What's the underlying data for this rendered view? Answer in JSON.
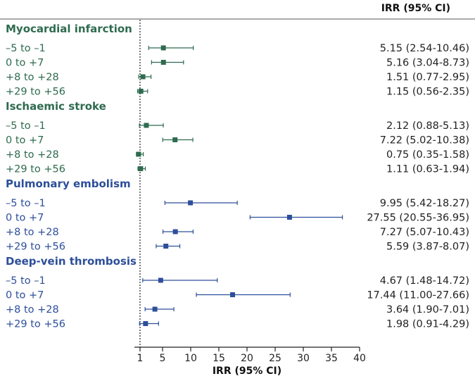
{
  "colors": {
    "green": "#2e6b4f",
    "blue": "#2d4f9a",
    "axis": "#222222",
    "header_rule": "#555555"
  },
  "chart_data": {
    "type": "forest",
    "xlabel": "IRR (95% CI)",
    "column_header": "IRR (95% CI)",
    "xlim": [
      0,
      40
    ],
    "reference_line": 1,
    "xticks": [
      1,
      5,
      10,
      15,
      20,
      25,
      30,
      35,
      40
    ],
    "xtick_labels": [
      "1",
      "5",
      "10",
      "15",
      "20",
      "25",
      "30",
      "35",
      "40"
    ],
    "groups": [
      {
        "name": "Myocardial infarction",
        "color": "green",
        "rows": [
          {
            "period": "–5 to –1",
            "irr": 5.15,
            "lo": 2.54,
            "hi": 10.46,
            "label": "5.15 (2.54-10.46)"
          },
          {
            "period": "0 to +7",
            "irr": 5.16,
            "lo": 3.04,
            "hi": 8.73,
            "label": "5.16 (3.04-8.73)"
          },
          {
            "period": "+8 to +28",
            "irr": 1.51,
            "lo": 0.77,
            "hi": 2.95,
            "label": "1.51 (0.77-2.95)"
          },
          {
            "period": "+29 to +56",
            "irr": 1.15,
            "lo": 0.56,
            "hi": 2.35,
            "label": "1.15 (0.56-2.35)"
          }
        ]
      },
      {
        "name": "Ischaemic stroke",
        "color": "green",
        "rows": [
          {
            "period": "–5 to –1",
            "irr": 2.12,
            "lo": 0.88,
            "hi": 5.13,
            "label": "2.12 (0.88-5.13)"
          },
          {
            "period": "0 to +7",
            "irr": 7.22,
            "lo": 5.02,
            "hi": 10.38,
            "label": "7.22 (5.02-10.38)"
          },
          {
            "period": "+8 to +28",
            "irr": 0.75,
            "lo": 0.35,
            "hi": 1.58,
            "label": "0.75 (0.35-1.58)"
          },
          {
            "period": "+29 to +56",
            "irr": 1.11,
            "lo": 0.63,
            "hi": 1.94,
            "label": "1.11 (0.63-1.94)"
          }
        ]
      },
      {
        "name": "Pulmonary embolism",
        "color": "blue",
        "rows": [
          {
            "period": "–5 to –1",
            "irr": 9.95,
            "lo": 5.42,
            "hi": 18.27,
            "label": "9.95 (5.42-18.27)"
          },
          {
            "period": "0 to +7",
            "irr": 27.55,
            "lo": 20.55,
            "hi": 36.95,
            "label": "27.55 (20.55-36.95)"
          },
          {
            "period": "+8 to +28",
            "irr": 7.27,
            "lo": 5.07,
            "hi": 10.43,
            "label": "7.27 (5.07-10.43)"
          },
          {
            "period": "+29 to +56",
            "irr": 5.59,
            "lo": 3.87,
            "hi": 8.07,
            "label": "5.59 (3.87-8.07)"
          }
        ]
      },
      {
        "name": "Deep-vein thrombosis",
        "color": "blue",
        "rows": [
          {
            "period": "–5 to –1",
            "irr": 4.67,
            "lo": 1.48,
            "hi": 14.72,
            "label": "4.67 (1.48-14.72)"
          },
          {
            "period": "0 to +7",
            "irr": 17.44,
            "lo": 11.0,
            "hi": 27.66,
            "label": "17.44 (11.00-27.66)"
          },
          {
            "period": "+8 to +28",
            "irr": 3.64,
            "lo": 1.9,
            "hi": 7.01,
            "label": "3.64 (1.90-7.01)"
          },
          {
            "period": "+29 to +56",
            "irr": 1.98,
            "lo": 0.91,
            "hi": 4.29,
            "label": "1.98 (0.91-4.29)"
          }
        ]
      }
    ]
  }
}
